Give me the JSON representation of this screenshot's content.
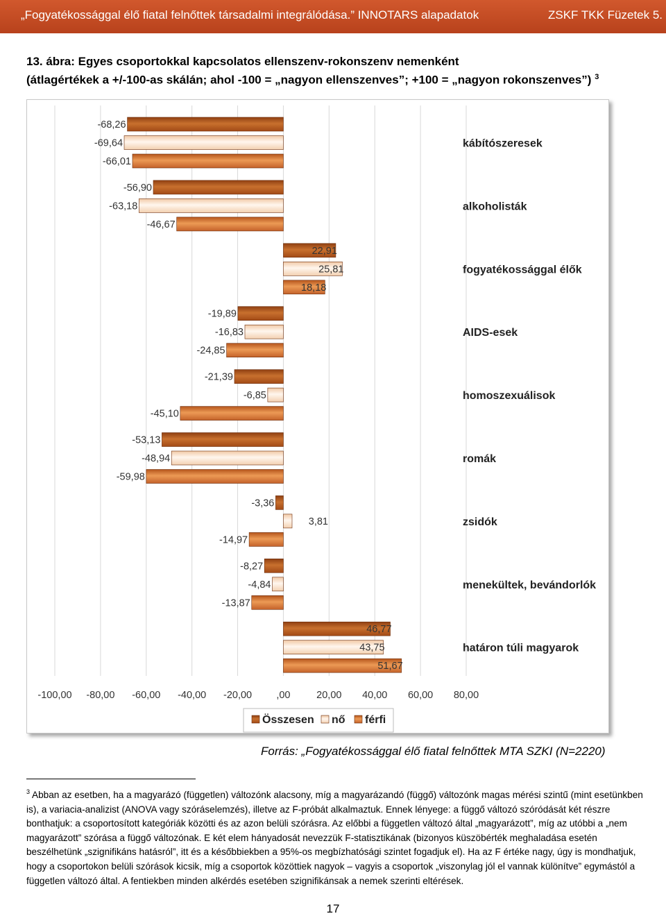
{
  "header": {
    "left": "„Fogyatékossággal élő fiatal felnőttek társadalmi integrálódása.” INNOTARS alapadatok",
    "right": "ZSKF TKK Füzetek 5."
  },
  "figure": {
    "line1": "13. ábra: Egyes csoportokkal kapcsolatos ellenszenv-rokonszenv nemenként",
    "line2": "(átlagértékek a +/-100-as skálán; ahol -100 = „nagyon ellenszenves”; +100 = „nagyon rokonszenves”)",
    "footnote_ref": "3"
  },
  "colors": {
    "header": "#c24a21",
    "osszesen": "#b55a1e",
    "no": "#fbe7d5",
    "ferfi": "#d9712d"
  },
  "chart_data": {
    "type": "bar",
    "orientation": "horizontal",
    "categories": [
      "kábítószeresek",
      "alkoholisták",
      "fogyatékossággal élők",
      "AIDS-esek",
      "homoszexuálisok",
      "romák",
      "zsidók",
      "menekültek, bevándorlók",
      "határon túli magyarok"
    ],
    "series": [
      {
        "name": "Összesen",
        "values": [
          -68.26,
          -56.9,
          22.91,
          -19.89,
          -21.39,
          -53.13,
          -3.36,
          -8.27,
          46.77
        ]
      },
      {
        "name": "nő",
        "values": [
          -69.64,
          -63.18,
          25.81,
          -16.83,
          -6.85,
          -48.94,
          3.81,
          -4.84,
          43.75
        ]
      },
      {
        "name": "férfi",
        "values": [
          -66.01,
          -46.67,
          18.18,
          -24.85,
          -45.1,
          -59.98,
          -14.97,
          -13.87,
          51.67
        ]
      }
    ],
    "value_labels": [
      [
        "-68,26",
        "-69,64",
        "-66,01"
      ],
      [
        "-56,90",
        "-63,18",
        "-46,67"
      ],
      [
        "22,91",
        "25,81",
        "18,18"
      ],
      [
        "-19,89",
        "-16,83",
        "-24,85"
      ],
      [
        "-21,39",
        "-6,85",
        "-45,10"
      ],
      [
        "-53,13",
        "-48,94",
        "-59,98"
      ],
      [
        "-3,36",
        "3,81",
        "-14,97"
      ],
      [
        "-8,27",
        "-4,84",
        "-13,87"
      ],
      [
        "46,77",
        "43,75",
        "51,67"
      ]
    ],
    "xlim": [
      -100,
      80
    ],
    "x_ticks": [
      -100,
      -80,
      -60,
      -40,
      -20,
      0,
      20,
      40,
      60,
      80
    ],
    "x_tick_labels": [
      "-100,00",
      "-80,00",
      "-60,00",
      "-40,00",
      "-20,00",
      ",00",
      "20,00",
      "40,00",
      "60,00",
      "80,00"
    ],
    "grid": true,
    "legend": "bottom"
  },
  "source": "Forrás: „Fogyatékossággal élő fiatal felnőttek MTA SZKI (N=2220)",
  "footnote": {
    "number": "3",
    "text": "Abban az esetben, ha a magyarázó (független) változónk alacsony, míg a magyarázandó (függő) változónk magas mérési szintű (mint esetünkben is), a variacia-analizist (ANOVA vagy szóráselemzés), illetve az F-próbát alkalmaztuk. Ennek lényege: a függő változó szóródását két részre bonthatjuk: a csoportosított kategóriák közötti és az azon belüli szórásra. Az előbbi a független változó által „magyarázott”, míg az utóbbi a „nem magyarázott” szórása a függő változónak. E két elem hányadosát nevezzük F-statisztikának (bizonyos küszöbérték meghaladása esetén beszélhetünk „szignifikáns hatásról”, itt és a későbbiekben a 95%-os megbízhatósági szintet fogadjuk el). Ha az F értéke nagy, úgy is mondhatjuk, hogy a csoportokon belüli szórások kicsik, míg a csoportok közöttiek nagyok – vagyis a csoportok „viszonylag jól el vannak különítve” egymástól a független változó által. A fentiekben minden alkérdés esetében szignifikánsak a nemek szerinti eltérések."
  },
  "page_number": "17"
}
